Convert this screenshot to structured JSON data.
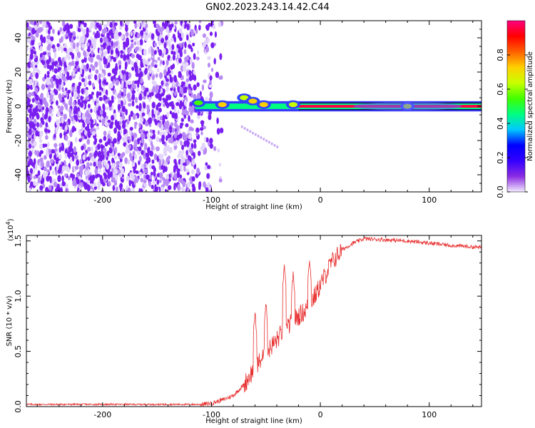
{
  "title": "GN02.2023.243.14.42.C44",
  "chart_data": [
    {
      "type": "heatmap",
      "xlabel": "Height of straight line (km)",
      "ylabel": "Frequency (Hz)",
      "xlim": [
        -270,
        148
      ],
      "ylim": [
        -50,
        50
      ],
      "xticks": [
        -200,
        -100,
        0,
        100
      ],
      "yticks": [
        -40,
        -20,
        0,
        20,
        40
      ],
      "colorbar": {
        "label": "Normalized spectral amplitude",
        "range": [
          0,
          1
        ],
        "ticks": [
          "0.0",
          "0.2",
          "0.4",
          "0.6",
          "0.8"
        ],
        "colors": [
          "#f2eaff",
          "#8a2be2",
          "#3300ff",
          "#0000ff",
          "#00c8ff",
          "#00ff80",
          "#40ff00",
          "#c8ff00",
          "#ffd000",
          "#ff6000",
          "#ff0000",
          "#ff0080"
        ]
      },
      "noise_region_x": [
        -270,
        -90
      ],
      "signal_line": {
        "x_start": -115,
        "x_end": 148,
        "frequency": 0,
        "amplitude": 0.85
      },
      "signal_blobs": [
        {
          "x": -112,
          "f": 2,
          "amp": 0.3
        },
        {
          "x": -90,
          "f": 1,
          "amp": 0.45
        },
        {
          "x": -70,
          "f": 5,
          "amp": 0.4
        },
        {
          "x": -62,
          "f": 3,
          "amp": 0.5
        },
        {
          "x": -52,
          "f": 1,
          "amp": 0.45
        },
        {
          "x": -25,
          "f": 1,
          "amp": 0.35
        },
        {
          "x": 80,
          "f": 0,
          "amp": 0.35
        }
      ]
    },
    {
      "type": "line",
      "xlabel": "Height of straight line (km)",
      "ylabel": "SNR (10 * v/v)",
      "y_multiplier_base": "(x10",
      "y_multiplier_exp": "4",
      "y_multiplier_close": ")",
      "xlim": [
        -270,
        148
      ],
      "ylim": [
        0,
        1.55
      ],
      "xticks": [
        -200,
        -100,
        0,
        100
      ],
      "yticks": [
        "0.0",
        "0.5",
        "1.0",
        "1.5"
      ],
      "color": "#e83030",
      "series": [
        {
          "x": [
            -270,
            -200,
            -150,
            -110,
            -100,
            -90,
            -80,
            -70,
            -65,
            -60,
            -55,
            -50,
            -45,
            -40,
            -35,
            -30,
            -25,
            -20,
            -15,
            -10,
            -5,
            0,
            10,
            20,
            30,
            40,
            60,
            80,
            100,
            120,
            148
          ],
          "values": [
            0.02,
            0.02,
            0.02,
            0.02,
            0.03,
            0.06,
            0.1,
            0.2,
            0.28,
            0.35,
            0.42,
            0.48,
            0.55,
            0.6,
            0.68,
            0.72,
            0.78,
            0.82,
            0.86,
            0.92,
            1.0,
            1.1,
            1.3,
            1.42,
            1.48,
            1.52,
            1.51,
            1.5,
            1.48,
            1.46,
            1.44
          ]
        }
      ],
      "spikes": [
        {
          "x": -60,
          "value": 0.85
        },
        {
          "x": -50,
          "value": 0.95
        },
        {
          "x": -33,
          "value": 1.27
        },
        {
          "x": -25,
          "value": 1.2
        },
        {
          "x": -10,
          "value": 1.33
        }
      ]
    }
  ]
}
